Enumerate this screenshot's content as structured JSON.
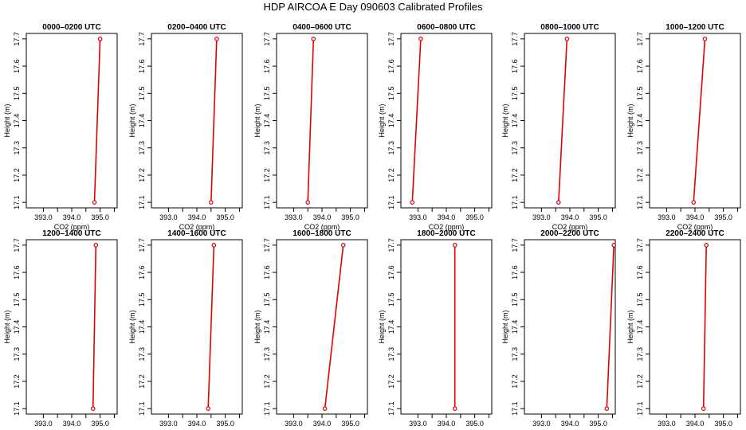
{
  "title": "HDP AIRCOA E  Day 090603  Calibrated Profiles",
  "colors": {
    "line": "#e00000",
    "marker": "#e00000",
    "axis": "#000000"
  },
  "chart_data": [
    {
      "type": "line",
      "title": "0000–0200 UTC",
      "xlabel": "CO2 (ppm)",
      "ylabel": "Height (m)",
      "xlim": [
        392.4,
        395.6
      ],
      "ylim": [
        17.08,
        17.72
      ],
      "xticks": [
        "393.0",
        "394.0",
        "395.0"
      ],
      "yticks": [
        "17.1",
        "17.2",
        "17.3",
        "17.4",
        "17.5",
        "17.6",
        "17.7"
      ],
      "series": [
        {
          "x": [
            394.8,
            395.0
          ],
          "y": [
            17.1,
            17.7
          ]
        }
      ]
    },
    {
      "type": "line",
      "title": "0200–0400 UTC",
      "xlabel": "CO2 (ppm)",
      "ylabel": "Height (m)",
      "xlim": [
        392.4,
        395.6
      ],
      "ylim": [
        17.08,
        17.72
      ],
      "xticks": [
        "393.0",
        "394.0",
        "395.0"
      ],
      "yticks": [
        "17.1",
        "17.2",
        "17.3",
        "17.4",
        "17.5",
        "17.6",
        "17.7"
      ],
      "series": [
        {
          "x": [
            394.5,
            394.7
          ],
          "y": [
            17.1,
            17.7
          ]
        }
      ]
    },
    {
      "type": "line",
      "title": "0400–0600 UTC",
      "xlabel": "CO2 (ppm)",
      "ylabel": "Height (m)",
      "xlim": [
        392.4,
        395.6
      ],
      "ylim": [
        17.08,
        17.72
      ],
      "xticks": [
        "393.0",
        "394.0",
        "395.0"
      ],
      "yticks": [
        "17.1",
        "17.2",
        "17.3",
        "17.4",
        "17.5",
        "17.6",
        "17.7"
      ],
      "series": [
        {
          "x": [
            393.5,
            393.7
          ],
          "y": [
            17.1,
            17.7
          ]
        }
      ]
    },
    {
      "type": "line",
      "title": "0600–0800 UTC",
      "xlabel": "CO2 (ppm)",
      "ylabel": "Height (m)",
      "xlim": [
        392.4,
        395.6
      ],
      "ylim": [
        17.08,
        17.72
      ],
      "xticks": [
        "393.0",
        "394.0",
        "395.0"
      ],
      "yticks": [
        "17.1",
        "17.2",
        "17.3",
        "17.4",
        "17.5",
        "17.6",
        "17.7"
      ],
      "series": [
        {
          "x": [
            392.8,
            393.1
          ],
          "y": [
            17.1,
            17.7
          ]
        }
      ]
    },
    {
      "type": "line",
      "title": "0800–1000 UTC",
      "xlabel": "CO2 (ppm)",
      "ylabel": "Height (m)",
      "xlim": [
        392.4,
        395.6
      ],
      "ylim": [
        17.08,
        17.72
      ],
      "xticks": [
        "393.0",
        "394.0",
        "395.0"
      ],
      "yticks": [
        "17.1",
        "17.2",
        "17.3",
        "17.4",
        "17.5",
        "17.6",
        "17.7"
      ],
      "series": [
        {
          "x": [
            393.6,
            393.9
          ],
          "y": [
            17.1,
            17.7
          ]
        }
      ]
    },
    {
      "type": "line",
      "title": "1000–1200 UTC",
      "xlabel": "CO2 (ppm)",
      "ylabel": "Height (m)",
      "xlim": [
        392.4,
        395.6
      ],
      "ylim": [
        17.08,
        17.72
      ],
      "xticks": [
        "393.0",
        "394.0",
        "395.0"
      ],
      "yticks": [
        "17.1",
        "17.2",
        "17.3",
        "17.4",
        "17.5",
        "17.6",
        "17.7"
      ],
      "series": [
        {
          "x": [
            393.95,
            394.35
          ],
          "y": [
            17.1,
            17.7
          ]
        }
      ]
    },
    {
      "type": "line",
      "title": "1200–1400 UTC",
      "xlabel": "CO2 (ppm)",
      "ylabel": "Height (m)",
      "xlim": [
        392.4,
        395.6
      ],
      "ylim": [
        17.08,
        17.72
      ],
      "xticks": [
        "393.0",
        "394.0",
        "395.0"
      ],
      "yticks": [
        "17.1",
        "17.2",
        "17.3",
        "17.4",
        "17.5",
        "17.6",
        "17.7"
      ],
      "series": [
        {
          "x": [
            394.75,
            394.85
          ],
          "y": [
            17.1,
            17.7
          ]
        }
      ]
    },
    {
      "type": "line",
      "title": "1400–1600 UTC",
      "xlabel": "CO2 (ppm)",
      "ylabel": "Height (m)",
      "xlim": [
        392.4,
        395.6
      ],
      "ylim": [
        17.08,
        17.72
      ],
      "xticks": [
        "393.0",
        "394.0",
        "395.0"
      ],
      "yticks": [
        "17.1",
        "17.2",
        "17.3",
        "17.4",
        "17.5",
        "17.6",
        "17.7"
      ],
      "series": [
        {
          "x": [
            394.4,
            394.6
          ],
          "y": [
            17.1,
            17.7
          ]
        }
      ]
    },
    {
      "type": "line",
      "title": "1600–1800 UTC",
      "xlabel": "CO2 (ppm)",
      "ylabel": "Height (m)",
      "xlim": [
        392.4,
        395.6
      ],
      "ylim": [
        17.08,
        17.72
      ],
      "xticks": [
        "393.0",
        "394.0",
        "395.0"
      ],
      "yticks": [
        "17.1",
        "17.2",
        "17.3",
        "17.4",
        "17.5",
        "17.6",
        "17.7"
      ],
      "series": [
        {
          "x": [
            394.1,
            394.75
          ],
          "y": [
            17.1,
            17.7
          ]
        }
      ]
    },
    {
      "type": "line",
      "title": "1800–2000 UTC",
      "xlabel": "CO2 (ppm)",
      "ylabel": "Height (m)",
      "xlim": [
        392.4,
        395.6
      ],
      "ylim": [
        17.08,
        17.72
      ],
      "xticks": [
        "393.0",
        "394.0",
        "395.0"
      ],
      "yticks": [
        "17.1",
        "17.2",
        "17.3",
        "17.4",
        "17.5",
        "17.6",
        "17.7"
      ],
      "series": [
        {
          "x": [
            394.3,
            394.3
          ],
          "y": [
            17.1,
            17.7
          ]
        }
      ]
    },
    {
      "type": "line",
      "title": "2000–2200 UTC",
      "xlabel": "CO2 (ppm)",
      "ylabel": "Height (m)",
      "xlim": [
        392.4,
        395.6
      ],
      "ylim": [
        17.08,
        17.72
      ],
      "xticks": [
        "393.0",
        "394.0",
        "395.0"
      ],
      "yticks": [
        "17.1",
        "17.2",
        "17.3",
        "17.4",
        "17.5",
        "17.6",
        "17.7"
      ],
      "series": [
        {
          "x": [
            395.3,
            395.55
          ],
          "y": [
            17.1,
            17.7
          ]
        }
      ]
    },
    {
      "type": "line",
      "title": "2200–2400 UTC",
      "xlabel": "CO2 (ppm)",
      "ylabel": "Height (m)",
      "xlim": [
        392.4,
        395.6
      ],
      "ylim": [
        17.08,
        17.72
      ],
      "xticks": [
        "393.0",
        "394.0",
        "395.0"
      ],
      "yticks": [
        "17.1",
        "17.2",
        "17.3",
        "17.4",
        "17.5",
        "17.6",
        "17.7"
      ],
      "series": [
        {
          "x": [
            394.3,
            394.4
          ],
          "y": [
            17.1,
            17.7
          ]
        }
      ]
    }
  ]
}
